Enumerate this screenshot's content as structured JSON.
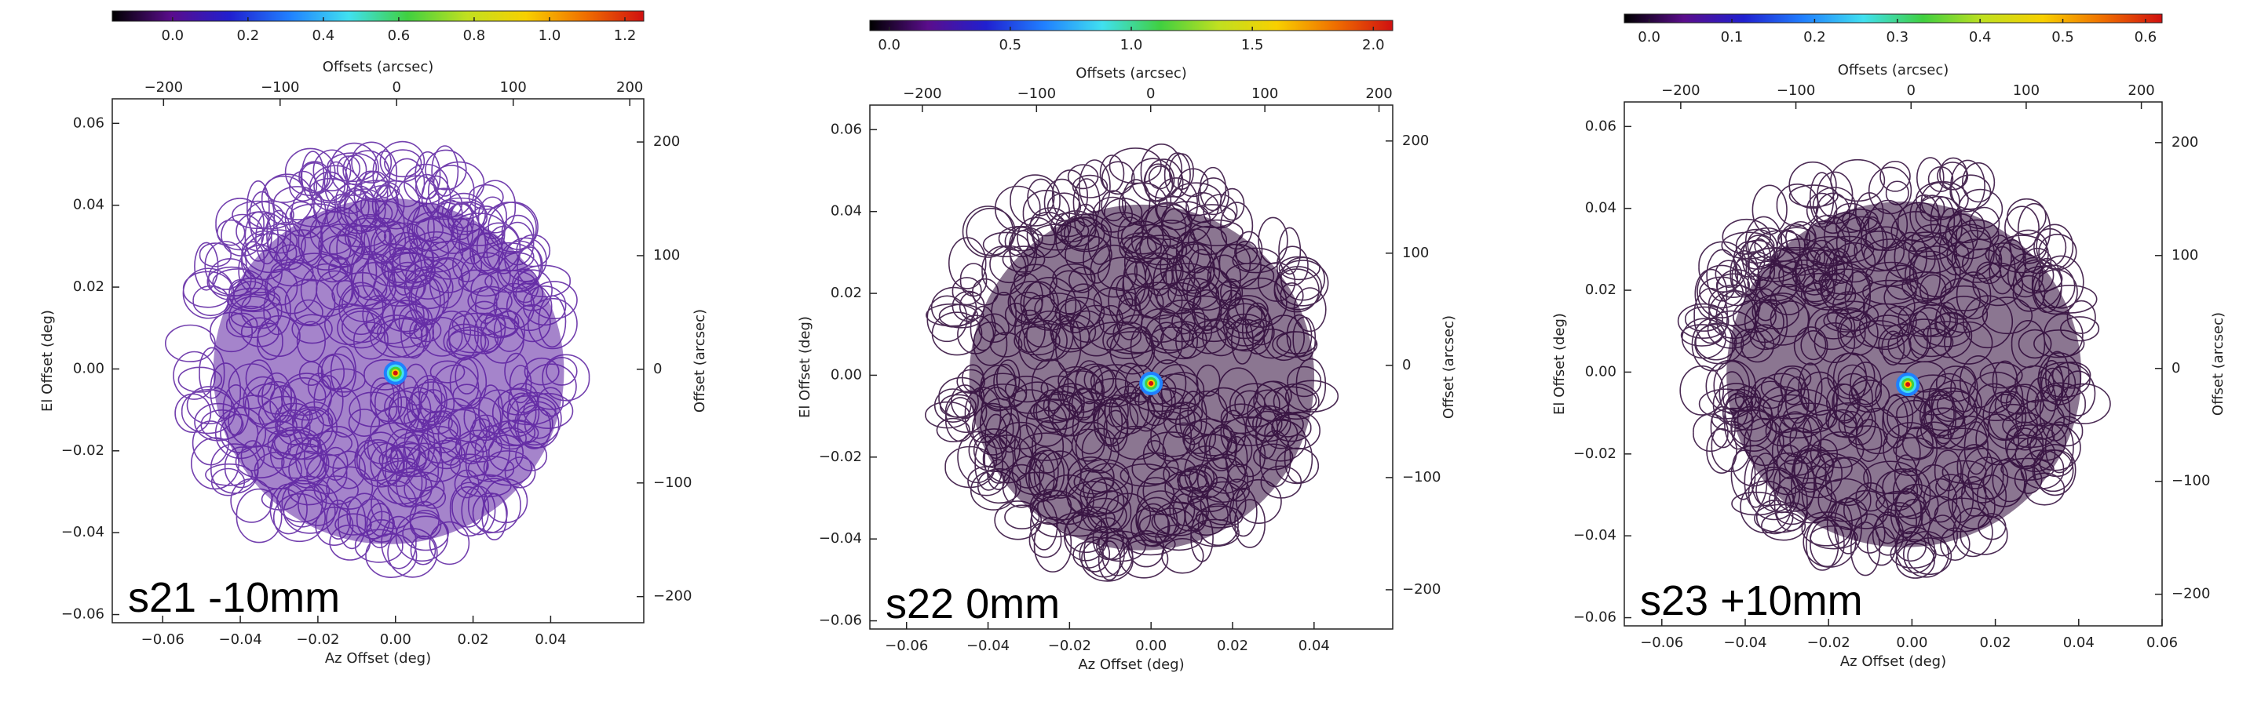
{
  "chart_data": [
    {
      "type": "heatmap",
      "label": "s21 -10mm",
      "xlabel": "Az Offset (deg)",
      "ylabel": "El Offset (deg)",
      "x2label": "Offsets (arcsec)",
      "y2label": "Offset (arcsec)",
      "xlim": [
        -0.073,
        0.064
      ],
      "xticks": [
        {
          "value": -0.06,
          "label": "−0.06"
        },
        {
          "value": -0.04,
          "label": "−0.04"
        },
        {
          "value": -0.02,
          "label": "−0.02"
        },
        {
          "value": 0,
          "label": "0.00"
        },
        0.02,
        0.04
      ],
      "ylim": [
        -0.062,
        0.066
      ],
      "yticks": [
        {
          "value": -0.06,
          "label": "−0.06"
        },
        {
          "value": -0.04,
          "label": "−0.04"
        },
        {
          "value": -0.02,
          "label": "−0.02"
        },
        {
          "value": 0,
          "label": "0.00"
        },
        0.02,
        0.04,
        0.06
      ],
      "x2lim": [
        -244,
        212
      ],
      "x2ticks": [
        {
          "value": -200,
          "label": "−200"
        },
        {
          "value": -100,
          "label": "−100"
        },
        0,
        100,
        200
      ],
      "y2lim": [
        -223,
        238
      ],
      "y2ticks": [
        {
          "value": -200,
          "label": "−200"
        },
        {
          "value": -100,
          "label": "−100"
        },
        0,
        100,
        200
      ],
      "colorbar": {
        "lim": [
          -0.16,
          1.25
        ],
        "ticks": [
          {
            "value": 0,
            "label": "0.0"
          },
          0.2,
          0.4,
          0.6,
          0.8,
          {
            "value": 1,
            "label": "1.0"
          },
          1.2
        ],
        "colors": [
          "#000000",
          "#5a0d8c",
          "#2020d0",
          "#2080ff",
          "#40e0f0",
          "#40d040",
          "#c0e020",
          "#f8d000",
          "#f07000",
          "#d01010"
        ]
      },
      "trace_color": "#5b1fa0",
      "peak": {
        "x": 0,
        "y": -0.001
      }
    },
    {
      "type": "heatmap",
      "label": "s22 0mm",
      "xlabel": "Az Offset (deg)",
      "ylabel": "El Offset (deg)",
      "x2label": "Offsets (arcsec)",
      "y2label": "Offset (arcsec)",
      "xlim": [
        -0.069,
        0.0593
      ],
      "xticks": [
        {
          "value": -0.06,
          "label": "−0.06"
        },
        {
          "value": -0.04,
          "label": "−0.04"
        },
        {
          "value": -0.02,
          "label": "−0.02"
        },
        {
          "value": 0,
          "label": "0.00"
        },
        0.02,
        0.04
      ],
      "ylim": [
        -0.062,
        0.066
      ],
      "yticks": [
        {
          "value": -0.06,
          "label": "−0.06"
        },
        {
          "value": -0.04,
          "label": "−0.04"
        },
        {
          "value": -0.02,
          "label": "−0.02"
        },
        {
          "value": 0,
          "label": "0.00"
        },
        0.02,
        0.04,
        0.06
      ],
      "x2lim": [
        -246,
        212
      ],
      "x2ticks": [
        {
          "value": -200,
          "label": "−200"
        },
        {
          "value": -100,
          "label": "−100"
        },
        0,
        100,
        200
      ],
      "y2lim": [
        -235,
        232
      ],
      "y2ticks": [
        {
          "value": -200,
          "label": "−200"
        },
        {
          "value": -100,
          "label": "−100"
        },
        0,
        100,
        200
      ],
      "colorbar": {
        "lim": [
          -0.08,
          2.08
        ],
        "ticks": [
          {
            "value": 0,
            "label": "0.0"
          },
          0.5,
          {
            "value": 1,
            "label": "1.0"
          },
          1.5,
          {
            "value": 2,
            "label": "2.0"
          }
        ],
        "colors": [
          "#000000",
          "#5a0d8c",
          "#2020d0",
          "#2080ff",
          "#40e0f0",
          "#40d040",
          "#c0e020",
          "#f8d000",
          "#f07000",
          "#d01010"
        ]
      },
      "trace_color": "#2c0636",
      "peak": {
        "x": 0,
        "y": -0.002
      }
    },
    {
      "type": "heatmap",
      "label": "s23 +10mm",
      "xlabel": "Az Offset (deg)",
      "ylabel": "El Offset (deg)",
      "x2label": "Offsets (arcsec)",
      "y2label": "Offset (arcsec)",
      "xlim": [
        -0.069,
        0.06
      ],
      "xticks": [
        {
          "value": -0.06,
          "label": "−0.06"
        },
        {
          "value": -0.04,
          "label": "−0.04"
        },
        {
          "value": -0.02,
          "label": "−0.02"
        },
        {
          "value": 0,
          "label": "0.00"
        },
        0.02,
        0.04,
        0.06
      ],
      "ylim": [
        -0.062,
        0.066
      ],
      "yticks": [
        {
          "value": -0.06,
          "label": "−0.06"
        },
        {
          "value": -0.04,
          "label": "−0.04"
        },
        {
          "value": -0.02,
          "label": "−0.02"
        },
        {
          "value": 0,
          "label": "0.00"
        },
        0.02,
        0.04,
        0.06
      ],
      "x2lim": [
        -249,
        218
      ],
      "x2ticks": [
        {
          "value": -200,
          "label": "−200"
        },
        {
          "value": -100,
          "label": "−100"
        },
        0,
        100,
        200
      ],
      "y2lim": [
        -228,
        236
      ],
      "y2ticks": [
        {
          "value": -200,
          "label": "−200"
        },
        {
          "value": -100,
          "label": "−100"
        },
        0,
        100,
        200
      ],
      "colorbar": {
        "lim": [
          -0.03,
          0.62
        ],
        "ticks": [
          {
            "value": 0,
            "label": "0.0"
          },
          0.1,
          0.2,
          0.3,
          0.4,
          0.5,
          0.6
        ],
        "colors": [
          "#000000",
          "#5a0d8c",
          "#2020d0",
          "#2080ff",
          "#40e0f0",
          "#40d040",
          "#c0e020",
          "#f8d000",
          "#f07000",
          "#d01010"
        ]
      },
      "trace_color": "#2c0636",
      "peak": {
        "x": -0.001,
        "y": -0.003
      }
    }
  ]
}
